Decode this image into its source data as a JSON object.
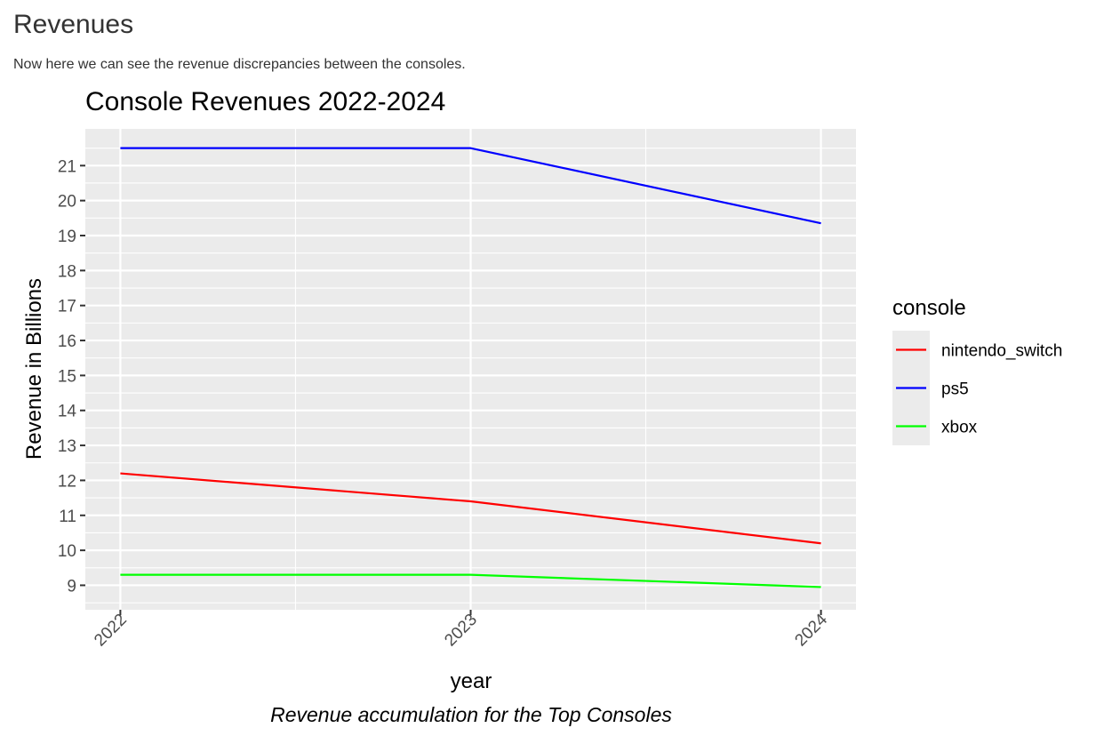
{
  "page": {
    "heading": "Revenues",
    "paragraph": "Now here we can see the revenue discrepancies between the consoles."
  },
  "chart_data": {
    "type": "line",
    "title": "Console Revenues 2022-2024",
    "xlabel": "year",
    "ylabel": "Revenue in Billions",
    "caption": "Revenue accumulation for the Top Consoles",
    "x": [
      2022,
      2023,
      2024
    ],
    "x_ticks": [
      "2022",
      "2023",
      "2024"
    ],
    "xlim": [
      2021.9,
      2024.1
    ],
    "ylim": [
      8.3,
      22.05
    ],
    "y_ticks": [
      9,
      10,
      11,
      12,
      13,
      14,
      15,
      16,
      17,
      18,
      19,
      20,
      21
    ],
    "y_tick_labels": [
      "9",
      "10",
      "11",
      "12",
      "13",
      "14",
      "15",
      "16",
      "17",
      "18",
      "19",
      "20",
      "21"
    ],
    "grid": true,
    "legend": {
      "title": "console",
      "position": "right"
    },
    "series": [
      {
        "name": "nintendo_switch",
        "color": "#ff0000",
        "values": [
          12.2,
          11.4,
          10.2
        ]
      },
      {
        "name": "ps5",
        "color": "#0000ff",
        "values": [
          21.5,
          21.5,
          19.35
        ]
      },
      {
        "name": "xbox",
        "color": "#00ff00",
        "values": [
          9.3,
          9.3,
          8.95
        ]
      }
    ]
  }
}
